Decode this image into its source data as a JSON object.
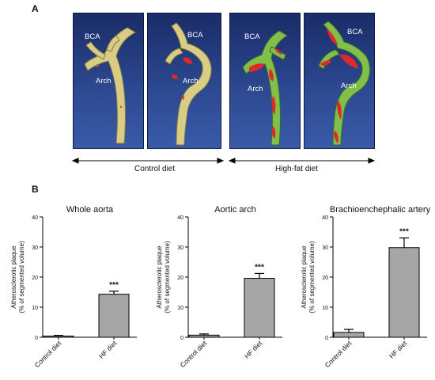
{
  "panel_a": {
    "letter": "A",
    "renders": [
      {
        "labels": {
          "bca": "BCA",
          "arch": "Arch"
        },
        "diet": "control"
      },
      {
        "labels": {
          "bca": "BCA",
          "arch": "Arch"
        },
        "diet": "control"
      },
      {
        "labels": {
          "bca": "BCA",
          "arch": "Arch"
        },
        "diet": "high-fat"
      },
      {
        "labels": {
          "bca": "BCA",
          "arch": "Arch"
        },
        "diet": "high-fat"
      }
    ],
    "groups": [
      "Control diet",
      "High-fat diet"
    ],
    "colors": {
      "background": "#2c4890",
      "vessel_control": "#d8cc86",
      "vessel_hf": "#7fbf4a",
      "plaque": "#e0282a"
    }
  },
  "panel_b": {
    "letter": "B"
  },
  "chart_data": [
    {
      "type": "bar",
      "title": "Whole aorta",
      "categories": [
        "Control diet",
        "HF diet"
      ],
      "values": [
        0.4,
        14.3
      ],
      "errors": [
        0.2,
        1.0
      ],
      "significance": [
        "",
        "***"
      ],
      "ylabel_lines": [
        "Atherosclerotic plaque",
        "(% of segmented volume)"
      ],
      "ylim": [
        0,
        40
      ],
      "yticks": [
        0,
        10,
        20,
        30,
        40
      ],
      "bar_color": "#a6a6a6"
    },
    {
      "type": "bar",
      "title": "Aortic arch",
      "categories": [
        "Control diet",
        "HF diet"
      ],
      "values": [
        0.7,
        19.6
      ],
      "errors": [
        0.4,
        1.6
      ],
      "significance": [
        "",
        "***"
      ],
      "ylabel_lines": [
        "Atherosclerotic plaque",
        "(% of segmented volume)"
      ],
      "ylim": [
        0,
        40
      ],
      "yticks": [
        0,
        10,
        20,
        30,
        40
      ],
      "bar_color": "#a6a6a6"
    },
    {
      "type": "bar",
      "title": "Brachioenchephalic artery",
      "categories": [
        "Control diet",
        "HF diet"
      ],
      "values": [
        1.6,
        29.8
      ],
      "errors": [
        1.0,
        3.2
      ],
      "significance": [
        "",
        "***"
      ],
      "ylabel_lines": [
        "Atherosclerotic plaque",
        "(% of segmented volume)"
      ],
      "ylim": [
        0,
        40
      ],
      "yticks": [
        0,
        10,
        20,
        30,
        40
      ],
      "bar_color": "#a6a6a6"
    }
  ]
}
